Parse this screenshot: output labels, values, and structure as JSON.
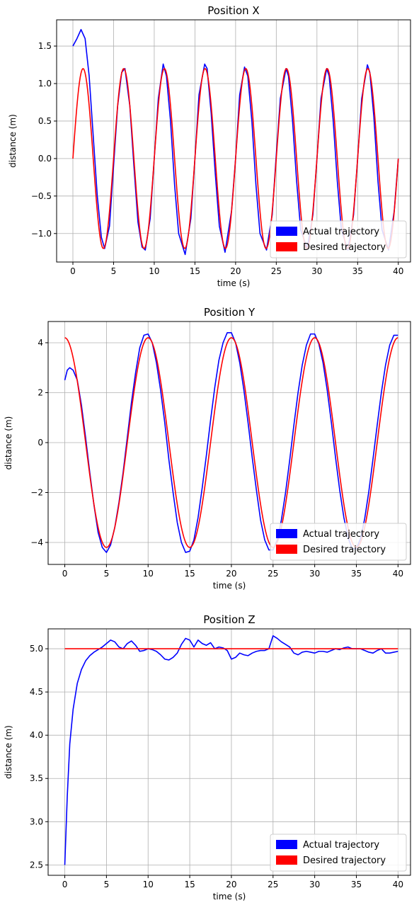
{
  "chart_data": [
    {
      "type": "line",
      "title": "Position X",
      "xlabel": "time (s)",
      "ylabel": "distance (m)",
      "xlim": [
        -2,
        41.5
      ],
      "ylim": [
        -1.38,
        1.85
      ],
      "xticks": [
        0,
        5,
        10,
        15,
        20,
        25,
        30,
        35,
        40
      ],
      "yticks": [
        -1.0,
        -0.5,
        0.0,
        0.5,
        1.0,
        1.5
      ],
      "ytick_labels": [
        "−1.0",
        "−0.5",
        "0.0",
        "0.5",
        "1.0",
        "1.5"
      ],
      "grid": true,
      "legend": "bottom-right",
      "series": [
        {
          "name": "Actual trajectory",
          "color": "#0000ff",
          "x": [
            0,
            0.5,
            1,
            1.5,
            2,
            2.5,
            3,
            3.5,
            3.9,
            4.5,
            5,
            5.5,
            6,
            6.4,
            7,
            7.5,
            8,
            8.5,
            8.9,
            9.5,
            10,
            10.5,
            11.1,
            11.5,
            12,
            12.5,
            13,
            13.8,
            14.5,
            15,
            15.5,
            16.2,
            16.5,
            17,
            17.5,
            18,
            18.7,
            19.5,
            20,
            20.5,
            21.1,
            21.5,
            22,
            22.5,
            23,
            23.8,
            24.5,
            25,
            25.5,
            26.2,
            26.5,
            27,
            27.5,
            28,
            28.8,
            29.5,
            30,
            30.5,
            31.2,
            31.5,
            32,
            32.5,
            33,
            33.8,
            34.5,
            35,
            35.5,
            36.2,
            36.5,
            37,
            37.5,
            38,
            38.8,
            39.5,
            40
          ],
          "y": [
            1.5,
            1.6,
            1.72,
            1.6,
            1.1,
            0.3,
            -0.5,
            -1.05,
            -1.2,
            -0.9,
            -0.1,
            0.7,
            1.15,
            1.2,
            0.7,
            -0.1,
            -0.85,
            -1.18,
            -1.22,
            -0.8,
            0.0,
            0.8,
            1.26,
            1.1,
            0.5,
            -0.35,
            -1.0,
            -1.28,
            -0.8,
            0.0,
            0.85,
            1.26,
            1.2,
            0.6,
            -0.2,
            -0.9,
            -1.25,
            -0.7,
            0.0,
            0.85,
            1.22,
            1.1,
            0.5,
            -0.35,
            -1.0,
            -1.22,
            -0.75,
            0.05,
            0.8,
            1.2,
            1.1,
            0.5,
            -0.3,
            -0.95,
            -1.2,
            -0.75,
            0.0,
            0.8,
            1.2,
            1.1,
            0.5,
            -0.3,
            -0.95,
            -1.22,
            -0.75,
            0.0,
            0.8,
            1.25,
            1.15,
            0.55,
            -0.3,
            -0.95,
            -1.22,
            -0.7,
            0.0
          ]
        },
        {
          "name": "Desired trajectory",
          "color": "#ff0000",
          "func": "1.2*sin(2*pi*t/5)",
          "tmin": 0,
          "tmax": 40
        }
      ]
    },
    {
      "type": "line",
      "title": "Position Y",
      "xlabel": "time (s)",
      "ylabel": "distance (m)",
      "xlim": [
        -2,
        41.5
      ],
      "ylim": [
        -4.88,
        4.85
      ],
      "xticks": [
        0,
        5,
        10,
        15,
        20,
        25,
        30,
        35,
        40
      ],
      "yticks": [
        -4,
        -2,
        0,
        2,
        4
      ],
      "ytick_labels": [
        "−4",
        "−2",
        "0",
        "2",
        "4"
      ],
      "grid": true,
      "legend": "bottom-right",
      "series": [
        {
          "name": "Actual trajectory",
          "color": "#0000ff",
          "x": [
            0,
            0.3,
            0.6,
            1,
            1.5,
            2,
            2.5,
            3,
            3.5,
            4,
            4.5,
            5,
            5.5,
            6,
            6.5,
            7,
            7.5,
            8,
            8.5,
            9,
            9.5,
            10,
            10.5,
            11,
            11.5,
            12,
            12.5,
            13,
            13.5,
            14,
            14.5,
            15,
            15.5,
            16,
            16.5,
            17,
            17.5,
            18,
            18.5,
            19,
            19.5,
            20,
            20.5,
            21,
            21.5,
            22,
            22.5,
            23,
            23.5,
            24,
            24.5,
            25,
            25.5,
            26,
            26.5,
            27,
            27.5,
            28,
            28.5,
            29,
            29.5,
            30,
            30.5,
            31,
            31.5,
            32,
            32.5,
            33,
            33.5,
            34,
            34.5,
            35,
            35.5,
            36,
            36.5,
            37,
            37.5,
            38,
            38.5,
            39,
            39.5,
            40
          ],
          "y": [
            2.5,
            2.9,
            3.0,
            2.9,
            2.5,
            1.5,
            0.2,
            -1.2,
            -2.5,
            -3.6,
            -4.2,
            -4.4,
            -4.1,
            -3.4,
            -2.4,
            -1.2,
            0.2,
            1.6,
            2.8,
            3.8,
            4.3,
            4.35,
            4.0,
            3.2,
            2.1,
            0.8,
            -0.7,
            -2.0,
            -3.2,
            -4.0,
            -4.4,
            -4.35,
            -3.9,
            -3.0,
            -1.8,
            -0.5,
            0.9,
            2.2,
            3.3,
            4.0,
            4.4,
            4.4,
            4.0,
            3.2,
            2.1,
            0.8,
            -0.6,
            -1.9,
            -3.1,
            -3.9,
            -4.3,
            -4.3,
            -3.9,
            -3.1,
            -2.0,
            -0.7,
            0.7,
            2.0,
            3.1,
            3.9,
            4.35,
            4.35,
            3.95,
            3.2,
            2.1,
            0.8,
            -0.6,
            -1.9,
            -3.0,
            -3.8,
            -4.25,
            -4.25,
            -3.85,
            -3.05,
            -1.95,
            -0.65,
            0.7,
            2.0,
            3.1,
            3.9,
            4.3,
            4.3
          ]
        },
        {
          "name": "Desired trajectory",
          "color": "#ff0000",
          "func": "4.2*cos(2*pi*t/10)",
          "tmin": 0,
          "tmax": 40
        }
      ]
    },
    {
      "type": "line",
      "title": "Position Z",
      "xlabel": "time (s)",
      "ylabel": "distance (m)",
      "xlim": [
        -2,
        41.5
      ],
      "ylim": [
        2.38,
        5.23
      ],
      "xticks": [
        0,
        5,
        10,
        15,
        20,
        25,
        30,
        35,
        40
      ],
      "yticks": [
        2.5,
        3.0,
        3.5,
        4.0,
        4.5,
        5.0
      ],
      "ytick_labels": [
        "2.5",
        "3.0",
        "3.5",
        "4.0",
        "4.5",
        "5.0"
      ],
      "grid": true,
      "legend": "bottom-right",
      "series": [
        {
          "name": "Actual trajectory",
          "color": "#0000ff",
          "x": [
            0,
            0.3,
            0.6,
            1,
            1.5,
            2,
            2.5,
            3,
            3.5,
            4,
            4.5,
            5,
            5.5,
            6,
            6.5,
            7,
            7.5,
            8,
            8.5,
            9,
            9.5,
            10,
            10.5,
            11,
            11.5,
            12,
            12.5,
            13,
            13.5,
            14,
            14.5,
            15,
            15.5,
            16,
            16.5,
            17,
            17.5,
            18,
            18.5,
            19,
            19.5,
            20,
            20.5,
            21,
            21.5,
            22,
            22.5,
            23,
            23.5,
            24,
            24.5,
            25,
            25.5,
            26,
            26.5,
            27,
            27.5,
            28,
            28.5,
            29,
            29.5,
            30,
            30.5,
            31,
            31.5,
            32,
            32.5,
            33,
            33.5,
            34,
            34.5,
            35,
            35.5,
            36,
            36.5,
            37,
            37.5,
            38,
            38.5,
            39,
            39.5,
            40
          ],
          "y": [
            2.5,
            3.3,
            3.9,
            4.3,
            4.6,
            4.76,
            4.86,
            4.92,
            4.96,
            4.99,
            5.02,
            5.06,
            5.1,
            5.08,
            5.02,
            5.0,
            5.06,
            5.09,
            5.04,
            4.97,
            4.98,
            5.0,
            4.99,
            4.97,
            4.93,
            4.88,
            4.87,
            4.9,
            4.95,
            5.05,
            5.12,
            5.1,
            5.02,
            5.1,
            5.06,
            5.04,
            5.07,
            5.0,
            5.02,
            5.01,
            4.98,
            4.88,
            4.9,
            4.95,
            4.93,
            4.92,
            4.95,
            4.97,
            4.98,
            4.98,
            5.0,
            5.15,
            5.12,
            5.08,
            5.05,
            5.02,
            4.95,
            4.93,
            4.96,
            4.97,
            4.96,
            4.95,
            4.97,
            4.97,
            4.96,
            4.98,
            5.0,
            4.99,
            5.01,
            5.02,
            5.0,
            5.0,
            5.0,
            4.98,
            4.96,
            4.95,
            4.98,
            5.0,
            4.95,
            4.95,
            4.96,
            4.97
          ]
        },
        {
          "name": "Desired trajectory",
          "color": "#ff0000",
          "x": [
            0,
            40
          ],
          "y": [
            5.0,
            5.0
          ]
        }
      ]
    }
  ]
}
